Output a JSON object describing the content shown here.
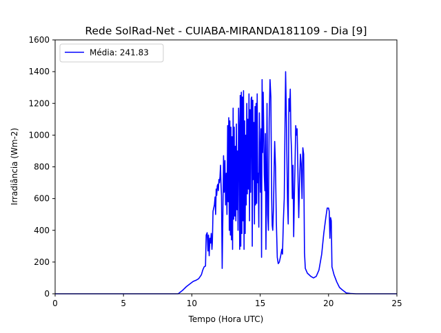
{
  "chart_data": {
    "type": "line",
    "title": "Rede SolRad-Net - CUIABA-MIRANDA181109 - Dia [9]",
    "xlabel": "Tempo (Hora UTC)",
    "ylabel": "Irradiância (Wm-2)",
    "xlim": [
      0,
      25
    ],
    "ylim": [
      0,
      1600
    ],
    "xticks": [
      0,
      5,
      10,
      15,
      20,
      25
    ],
    "yticks": [
      0,
      200,
      400,
      600,
      800,
      1000,
      1200,
      1400,
      1600
    ],
    "grid": false,
    "legend_position": "upper-left",
    "series": [
      {
        "name": "Média: 241.83",
        "color": "#0000ff",
        "points": [
          [
            0,
            0
          ],
          [
            9.0,
            0
          ],
          [
            9.3,
            20
          ],
          [
            9.6,
            45
          ],
          [
            9.9,
            65
          ],
          [
            10.1,
            78
          ],
          [
            10.3,
            85
          ],
          [
            10.5,
            95
          ],
          [
            10.7,
            120
          ],
          [
            10.8,
            150
          ],
          [
            10.9,
            170
          ],
          [
            11.0,
            175
          ],
          [
            11.05,
            370
          ],
          [
            11.12,
            385
          ],
          [
            11.18,
            270
          ],
          [
            11.22,
            370
          ],
          [
            11.27,
            240
          ],
          [
            11.32,
            350
          ],
          [
            11.37,
            320
          ],
          [
            11.42,
            380
          ],
          [
            11.47,
            280
          ],
          [
            11.5,
            320
          ],
          [
            11.55,
            520
          ],
          [
            11.6,
            540
          ],
          [
            11.65,
            560
          ],
          [
            11.7,
            610
          ],
          [
            11.74,
            500
          ],
          [
            11.78,
            660
          ],
          [
            11.82,
            620
          ],
          [
            11.86,
            680
          ],
          [
            11.9,
            690
          ],
          [
            11.94,
            650
          ],
          [
            11.98,
            720
          ],
          [
            12.02,
            700
          ],
          [
            12.06,
            740
          ],
          [
            12.1,
            810
          ],
          [
            12.13,
            700
          ],
          [
            12.17,
            620
          ],
          [
            12.22,
            160
          ],
          [
            12.27,
            500
          ],
          [
            12.32,
            870
          ],
          [
            12.37,
            640
          ],
          [
            12.42,
            840
          ],
          [
            12.47,
            560
          ],
          [
            12.52,
            760
          ],
          [
            12.57,
            500
          ],
          [
            12.62,
            1060
          ],
          [
            12.66,
            580
          ],
          [
            12.7,
            1110
          ],
          [
            12.74,
            400
          ],
          [
            12.78,
            1090
          ],
          [
            12.82,
            370
          ],
          [
            12.86,
            1050
          ],
          [
            12.9,
            340
          ],
          [
            12.94,
            990
          ],
          [
            12.98,
            280
          ],
          [
            13.02,
            1170
          ],
          [
            13.06,
            470
          ],
          [
            13.1,
            1050
          ],
          [
            13.14,
            490
          ],
          [
            13.18,
            930
          ],
          [
            13.22,
            460
          ],
          [
            13.26,
            1070
          ],
          [
            13.3,
            530
          ],
          [
            13.34,
            900
          ],
          [
            13.38,
            400
          ],
          [
            13.42,
            1170
          ],
          [
            13.46,
            1030
          ],
          [
            13.5,
            280
          ],
          [
            13.54,
            1250
          ],
          [
            13.58,
            300
          ],
          [
            13.62,
            1270
          ],
          [
            13.66,
            380
          ],
          [
            13.7,
            1240
          ],
          [
            13.74,
            460
          ],
          [
            13.78,
            1280
          ],
          [
            13.82,
            280
          ],
          [
            13.86,
            1090
          ],
          [
            13.9,
            380
          ],
          [
            13.94,
            1000
          ],
          [
            13.98,
            560
          ],
          [
            14.02,
            1200
          ],
          [
            14.06,
            630
          ],
          [
            14.1,
            1100
          ],
          [
            14.14,
            660
          ],
          [
            14.18,
            1260
          ],
          [
            14.22,
            460
          ],
          [
            14.26,
            1160
          ],
          [
            14.3,
            640
          ],
          [
            14.34,
            1230
          ],
          [
            14.38,
            1240
          ],
          [
            14.42,
            300
          ],
          [
            14.46,
            1220
          ],
          [
            14.5,
            720
          ],
          [
            14.54,
            1080
          ],
          [
            14.58,
            440
          ],
          [
            14.62,
            1180
          ],
          [
            14.66,
            560
          ],
          [
            14.7,
            1200
          ],
          [
            14.74,
            570
          ],
          [
            14.78,
            1260
          ],
          [
            14.82,
            700
          ],
          [
            14.86,
            760
          ],
          [
            14.9,
            420
          ],
          [
            14.94,
            1140
          ],
          [
            14.98,
            890
          ],
          [
            15.02,
            640
          ],
          [
            15.06,
            1040
          ],
          [
            15.1,
            230
          ],
          [
            15.14,
            1350
          ],
          [
            15.18,
            890
          ],
          [
            15.22,
            1270
          ],
          [
            15.26,
            1020
          ],
          [
            15.3,
            750
          ],
          [
            15.34,
            650
          ],
          [
            15.38,
            1010
          ],
          [
            15.42,
            280
          ],
          [
            15.46,
            660
          ],
          [
            15.5,
            1200
          ],
          [
            15.55,
            500
          ],
          [
            15.6,
            400
          ],
          [
            15.66,
            1100
          ],
          [
            15.72,
            1350
          ],
          [
            15.78,
            1240
          ],
          [
            15.84,
            600
          ],
          [
            15.88,
            430
          ],
          [
            15.92,
            400
          ],
          [
            15.97,
            530
          ],
          [
            16.02,
            790
          ],
          [
            16.06,
            960
          ],
          [
            16.12,
            800
          ],
          [
            16.18,
            460
          ],
          [
            16.25,
            230
          ],
          [
            16.32,
            190
          ],
          [
            16.4,
            200
          ],
          [
            16.5,
            240
          ],
          [
            16.58,
            280
          ],
          [
            16.63,
            250
          ],
          [
            16.7,
            470
          ],
          [
            16.76,
            600
          ],
          [
            16.82,
            1100
          ],
          [
            16.86,
            1400
          ],
          [
            16.9,
            1200
          ],
          [
            16.95,
            880
          ],
          [
            17.0,
            580
          ],
          [
            17.05,
            440
          ],
          [
            17.1,
            1230
          ],
          [
            17.15,
            1150
          ],
          [
            17.2,
            1290
          ],
          [
            17.25,
            1000
          ],
          [
            17.3,
            880
          ],
          [
            17.35,
            600
          ],
          [
            17.4,
            810
          ],
          [
            17.45,
            360
          ],
          [
            17.5,
            620
          ],
          [
            17.55,
            820
          ],
          [
            17.6,
            1060
          ],
          [
            17.65,
            1000
          ],
          [
            17.7,
            1040
          ],
          [
            17.76,
            770
          ],
          [
            17.82,
            480
          ],
          [
            17.88,
            700
          ],
          [
            17.94,
            880
          ],
          [
            18.0,
            820
          ],
          [
            18.06,
            600
          ],
          [
            18.12,
            920
          ],
          [
            18.18,
            880
          ],
          [
            18.24,
            260
          ],
          [
            18.3,
            160
          ],
          [
            18.45,
            130
          ],
          [
            18.7,
            110
          ],
          [
            18.9,
            100
          ],
          [
            19.1,
            110
          ],
          [
            19.3,
            150
          ],
          [
            19.5,
            250
          ],
          [
            19.65,
            380
          ],
          [
            19.8,
            480
          ],
          [
            19.9,
            540
          ],
          [
            20.0,
            540
          ],
          [
            20.05,
            520
          ],
          [
            20.1,
            350
          ],
          [
            20.15,
            480
          ],
          [
            20.2,
            460
          ],
          [
            20.25,
            170
          ],
          [
            20.4,
            120
          ],
          [
            20.6,
            75
          ],
          [
            20.8,
            40
          ],
          [
            21.0,
            25
          ],
          [
            21.2,
            12
          ],
          [
            21.3,
            5
          ],
          [
            21.6,
            2
          ],
          [
            22.0,
            0
          ],
          [
            25,
            0
          ]
        ]
      }
    ]
  }
}
